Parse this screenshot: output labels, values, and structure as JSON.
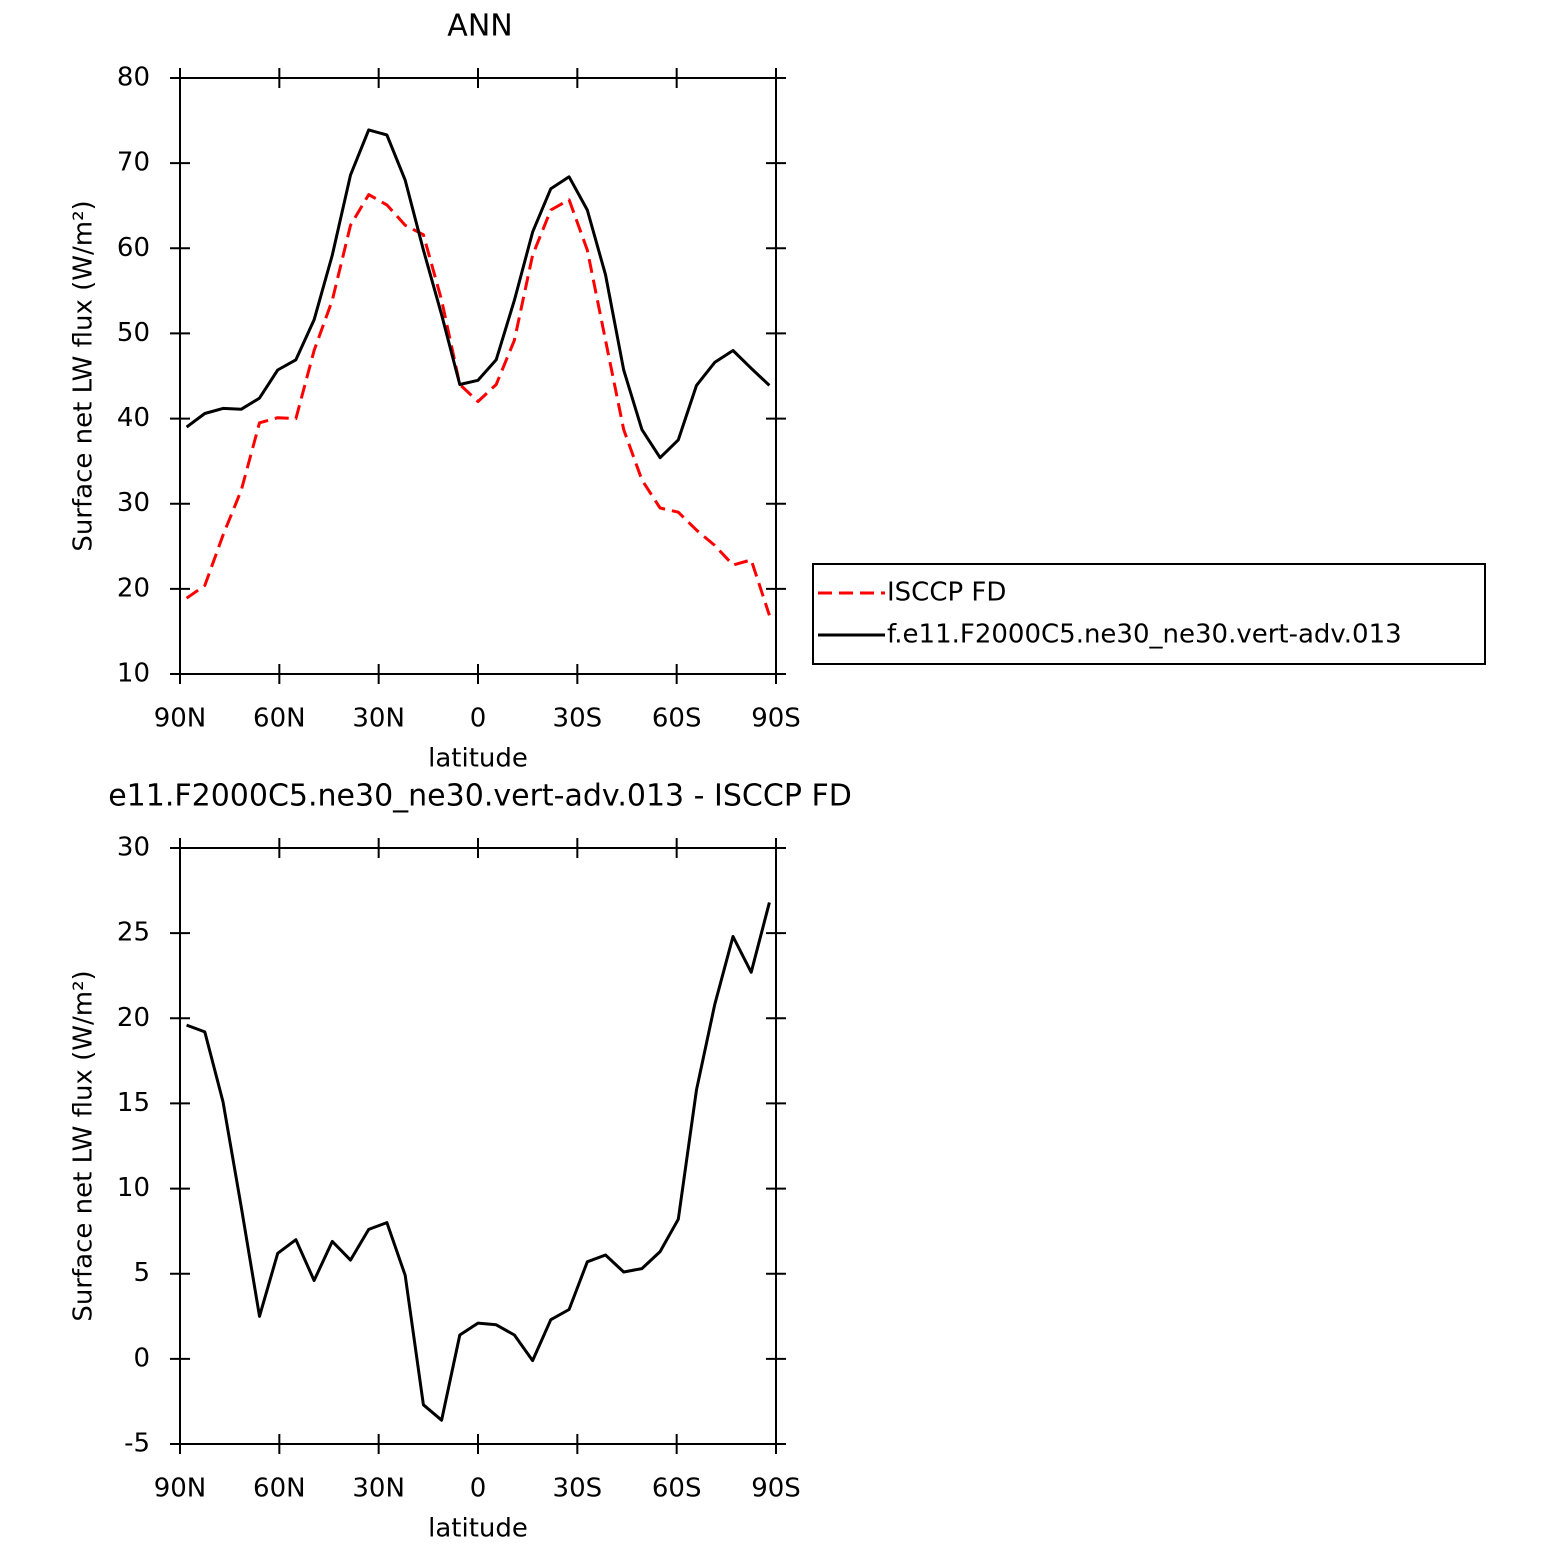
{
  "chart_data": [
    {
      "type": "line",
      "title": "ANN",
      "xlabel": "latitude",
      "ylabel": "Surface net LW flux (W/m²)",
      "x": [
        88,
        82.5,
        77,
        71.5,
        66,
        60.5,
        55,
        49.5,
        44,
        38.5,
        33,
        27.5,
        22,
        16.5,
        11,
        5.5,
        0,
        -5.5,
        -11,
        -16.5,
        -22,
        -27.5,
        -33,
        -38.5,
        -44,
        -49.5,
        -55,
        -60.5,
        -66,
        -71.5,
        -77,
        -82.5,
        -88
      ],
      "xlim": [
        90,
        -90
      ],
      "xticks": [
        {
          "value": 90,
          "label": "90N"
        },
        {
          "value": 60,
          "label": "60N"
        },
        {
          "value": 30,
          "label": "30N"
        },
        0,
        {
          "value": -30,
          "label": "30S"
        },
        {
          "value": -60,
          "label": "60S"
        },
        {
          "value": -90,
          "label": "90S"
        }
      ],
      "ylim": [
        10,
        80
      ],
      "yticks": [
        10,
        20,
        30,
        40,
        50,
        60,
        70,
        80
      ],
      "legend": "outside-right",
      "series": [
        {
          "name": "ISCCP FD",
          "color": "#ff0000",
          "style": "dashed",
          "values": [
            18.9,
            20.4,
            26.3,
            31.6,
            39.5,
            40.1,
            40,
            48,
            53.9,
            62.7,
            66.3,
            65.1,
            62.7,
            61.6,
            53.9,
            44,
            42,
            44,
            49.2,
            59.2,
            64.5,
            65.7,
            59.8,
            49.2,
            38.7,
            32.8,
            29.5,
            29,
            26.9,
            25.1,
            22.8,
            23.4,
            16.9
          ]
        },
        {
          "name": "f.e11.F2000C5.ne30_ne30.vert-adv.013",
          "color": "#000000",
          "style": "solid",
          "values": [
            39,
            40.6,
            41.2,
            41.1,
            42.4,
            45.7,
            46.9,
            51.6,
            59.2,
            68.6,
            73.9,
            73.3,
            68,
            59.8,
            52.2,
            44,
            44.5,
            46.9,
            53.9,
            61.9,
            67,
            68.4,
            64.5,
            56.9,
            45.7,
            38.7,
            35.4,
            37.5,
            43.9,
            46.6,
            48,
            45.9,
            43.9
          ]
        }
      ]
    },
    {
      "type": "line",
      "title": "e11.F2000C5.ne30_ne30.vert-adv.013 - ISCCP FD",
      "xlabel": "latitude",
      "ylabel": "Surface net LW flux (W/m²)",
      "x": [
        88,
        82.5,
        77,
        71.5,
        66,
        60.5,
        55,
        49.5,
        44,
        38.5,
        33,
        27.5,
        22,
        16.5,
        11,
        5.5,
        0,
        -5.5,
        -11,
        -16.5,
        -22,
        -27.5,
        -33,
        -38.5,
        -44,
        -49.5,
        -55,
        -60.5,
        -66,
        -71.5,
        -77,
        -82.5,
        -88
      ],
      "xlim": [
        90,
        -90
      ],
      "xticks": [
        {
          "value": 90,
          "label": "90N"
        },
        {
          "value": 60,
          "label": "60N"
        },
        {
          "value": 30,
          "label": "30N"
        },
        0,
        {
          "value": -30,
          "label": "30S"
        },
        {
          "value": -60,
          "label": "60S"
        },
        {
          "value": -90,
          "label": "90S"
        }
      ],
      "ylim": [
        -5,
        30
      ],
      "yticks": [
        -5,
        0,
        5,
        10,
        15,
        20,
        25,
        30
      ],
      "series": [
        {
          "color": "#000000",
          "style": "solid",
          "values": [
            19.6,
            19.2,
            15.1,
            8.9,
            2.5,
            6.2,
            7,
            4.6,
            6.9,
            5.8,
            7.6,
            8,
            4.9,
            -2.7,
            -3.6,
            1.4,
            2.1,
            2,
            1.4,
            -0.1,
            2.3,
            2.9,
            5.7,
            6.1,
            5.1,
            5.3,
            6.3,
            8.2,
            15.8,
            20.8,
            24.8,
            22.7,
            26.8
          ]
        }
      ]
    }
  ]
}
